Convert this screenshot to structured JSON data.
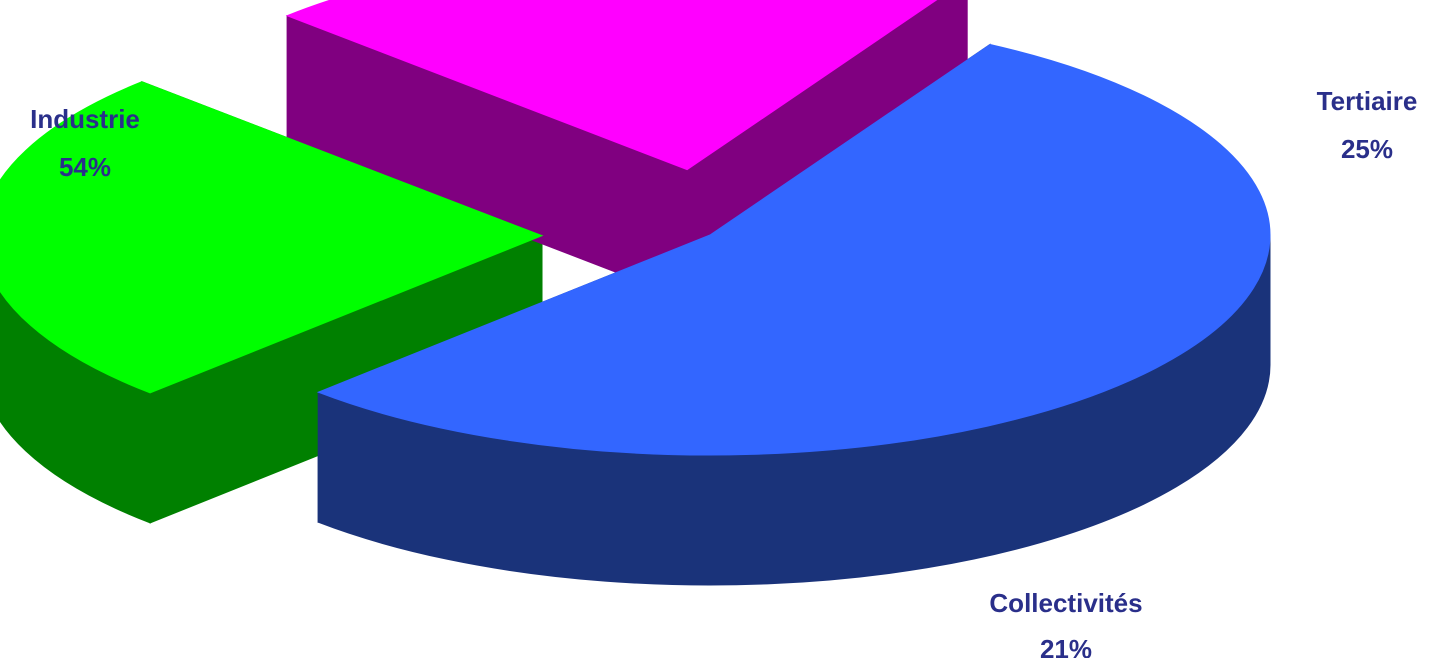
{
  "chart_data": {
    "type": "pie",
    "style": "3d-exploded",
    "title": "",
    "slices": [
      {
        "label": "Industrie",
        "value": 54,
        "value_label": "54%",
        "top_color": "#3366ff",
        "side_color": "#1a337a"
      },
      {
        "label": "Tertiaire",
        "value": 25,
        "value_label": "25%",
        "top_color": "#00ff00",
        "side_color": "#008000"
      },
      {
        "label": "Collectivités",
        "value": 21,
        "value_label": "21%",
        "top_color": "#ff00ff",
        "side_color": "#800080"
      }
    ]
  },
  "label_color": "#2a2f8a"
}
